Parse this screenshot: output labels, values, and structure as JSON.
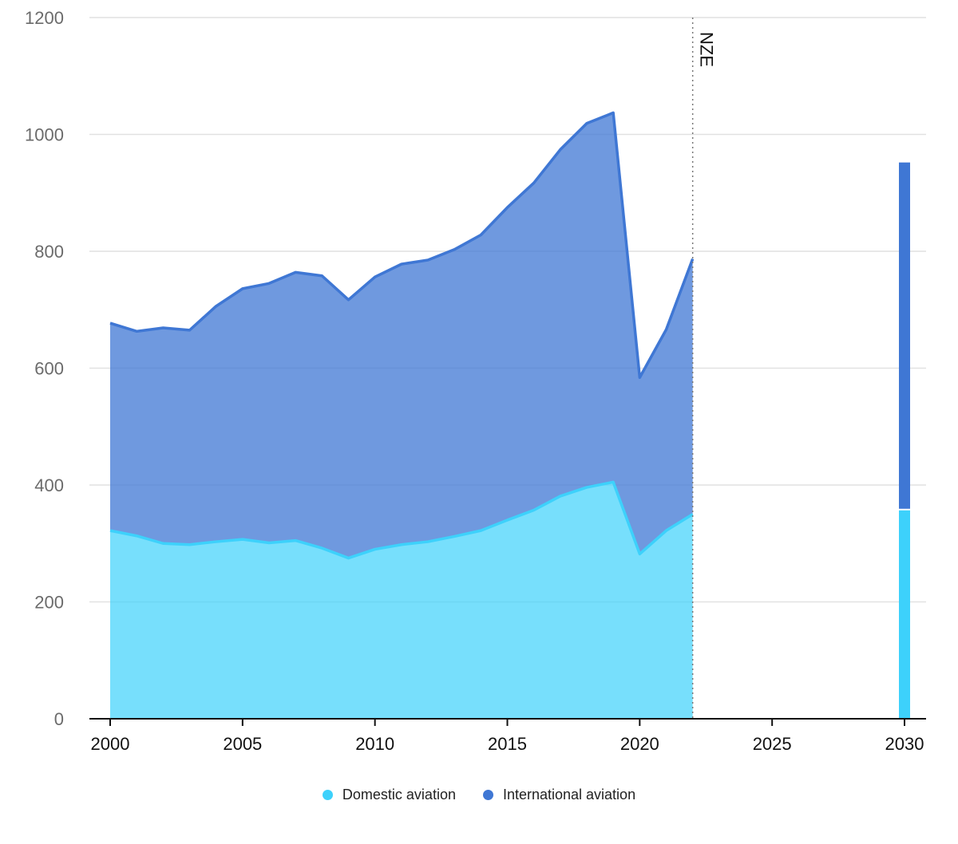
{
  "chart_data": {
    "type": "area",
    "title": "",
    "xlabel": "",
    "ylabel": "",
    "xlim": [
      2000,
      2030
    ],
    "ylim": [
      0,
      1200
    ],
    "y_ticks": [
      "0",
      "200",
      "400",
      "600",
      "800",
      "1000",
      "1200"
    ],
    "x_ticks": [
      "2000",
      "2005",
      "2010",
      "2015",
      "2020",
      "2025",
      "2030"
    ],
    "x": [
      2000,
      2001,
      2002,
      2003,
      2004,
      2005,
      2006,
      2007,
      2008,
      2009,
      2010,
      2011,
      2012,
      2013,
      2014,
      2015,
      2016,
      2017,
      2018,
      2019,
      2020,
      2021,
      2022
    ],
    "series": [
      {
        "name": "Domestic aviation",
        "color": "#3dd1fb",
        "values": [
          322,
          313,
          300,
          298,
          303,
          307,
          301,
          305,
          292,
          275,
          290,
          298,
          303,
          312,
          322,
          340,
          357,
          381,
          396,
          405,
          282,
          322,
          350
        ]
      },
      {
        "name": "International aviation",
        "color": "#3f77d4",
        "values": [
          355,
          350,
          369,
          367,
          403,
          429,
          444,
          459,
          466,
          442,
          466,
          480,
          482,
          491,
          506,
          535,
          560,
          593,
          623,
          632,
          302,
          344,
          437
        ]
      }
    ],
    "reference_line": {
      "x": 2022,
      "label": "NZE"
    },
    "projection": {
      "year": 2030,
      "values": [
        {
          "name": "Domestic aviation",
          "value": 358
        },
        {
          "name": "International aviation",
          "value": 594
        }
      ]
    },
    "legend_position": "bottom-center",
    "grid": true
  },
  "legend": {
    "domestic_label": "Domestic aviation",
    "international_label": "International aviation",
    "domestic_color": "#3dd1fb",
    "international_color": "#3f77d4"
  }
}
